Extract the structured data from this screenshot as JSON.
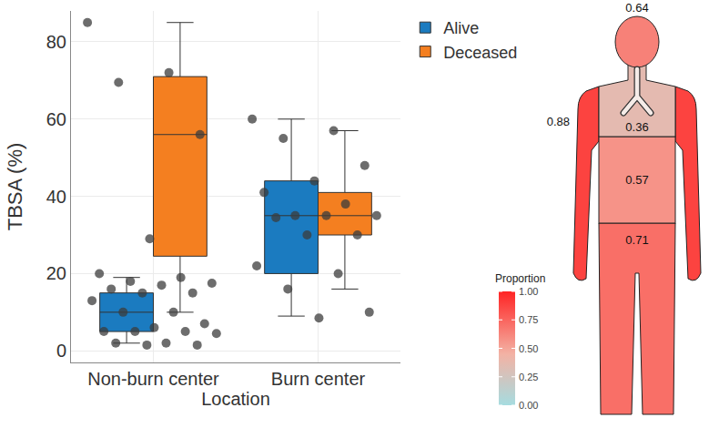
{
  "chart_data": [
    {
      "type": "box",
      "x_label": "Location",
      "y_label": "TBSA (%)",
      "categories": [
        "Non-burn center",
        "Burn center"
      ],
      "ylim": [
        -3,
        88
      ],
      "yticks": [
        0,
        20,
        40,
        60,
        80
      ],
      "grid": true,
      "legend": "right",
      "series": [
        {
          "name": "Alive",
          "color": "#1b7bc0",
          "q1": [
            5,
            20
          ],
          "median": [
            10,
            35
          ],
          "q3": [
            15,
            44
          ],
          "lower": [
            2,
            9
          ],
          "upper": [
            19,
            60
          ]
        },
        {
          "name": "Deceased",
          "color": "#f47f20",
          "q1": [
            24.5,
            30
          ],
          "median": [
            56,
            35
          ],
          "q3": [
            71,
            41
          ],
          "lower": [
            10,
            16
          ],
          "upper": [
            85,
            57
          ]
        }
      ],
      "points": {
        "color": "#3c3c3c",
        "values": [
          [
            85,
            72,
            69.5,
            56,
            29,
            20,
            19,
            18,
            17.5,
            17,
            16,
            15,
            15,
            13,
            10,
            10,
            7,
            6,
            5,
            5,
            5,
            4.5,
            2,
            2,
            1.5,
            1.5
          ],
          [
            60,
            57,
            55,
            48,
            44,
            41,
            38,
            35,
            35,
            35,
            34.5,
            30,
            30,
            22,
            20,
            16,
            10,
            8.5
          ]
        ]
      }
    },
    {
      "type": "body_map",
      "regions": {
        "head": 0.64,
        "arms": 0.88,
        "airway": 0.36,
        "trunk": 0.57,
        "legs": 0.71
      },
      "colorbar": {
        "title": "Proportion",
        "range": [
          0,
          1
        ],
        "ticks": [
          {
            "value": 0,
            "label": "0.00"
          },
          {
            "value": 0.25,
            "label": "0.25"
          },
          {
            "value": 0.5,
            "label": "0.50"
          },
          {
            "value": 0.75,
            "label": "0.75"
          },
          {
            "value": 1,
            "label": "1.00"
          }
        ]
      }
    }
  ]
}
